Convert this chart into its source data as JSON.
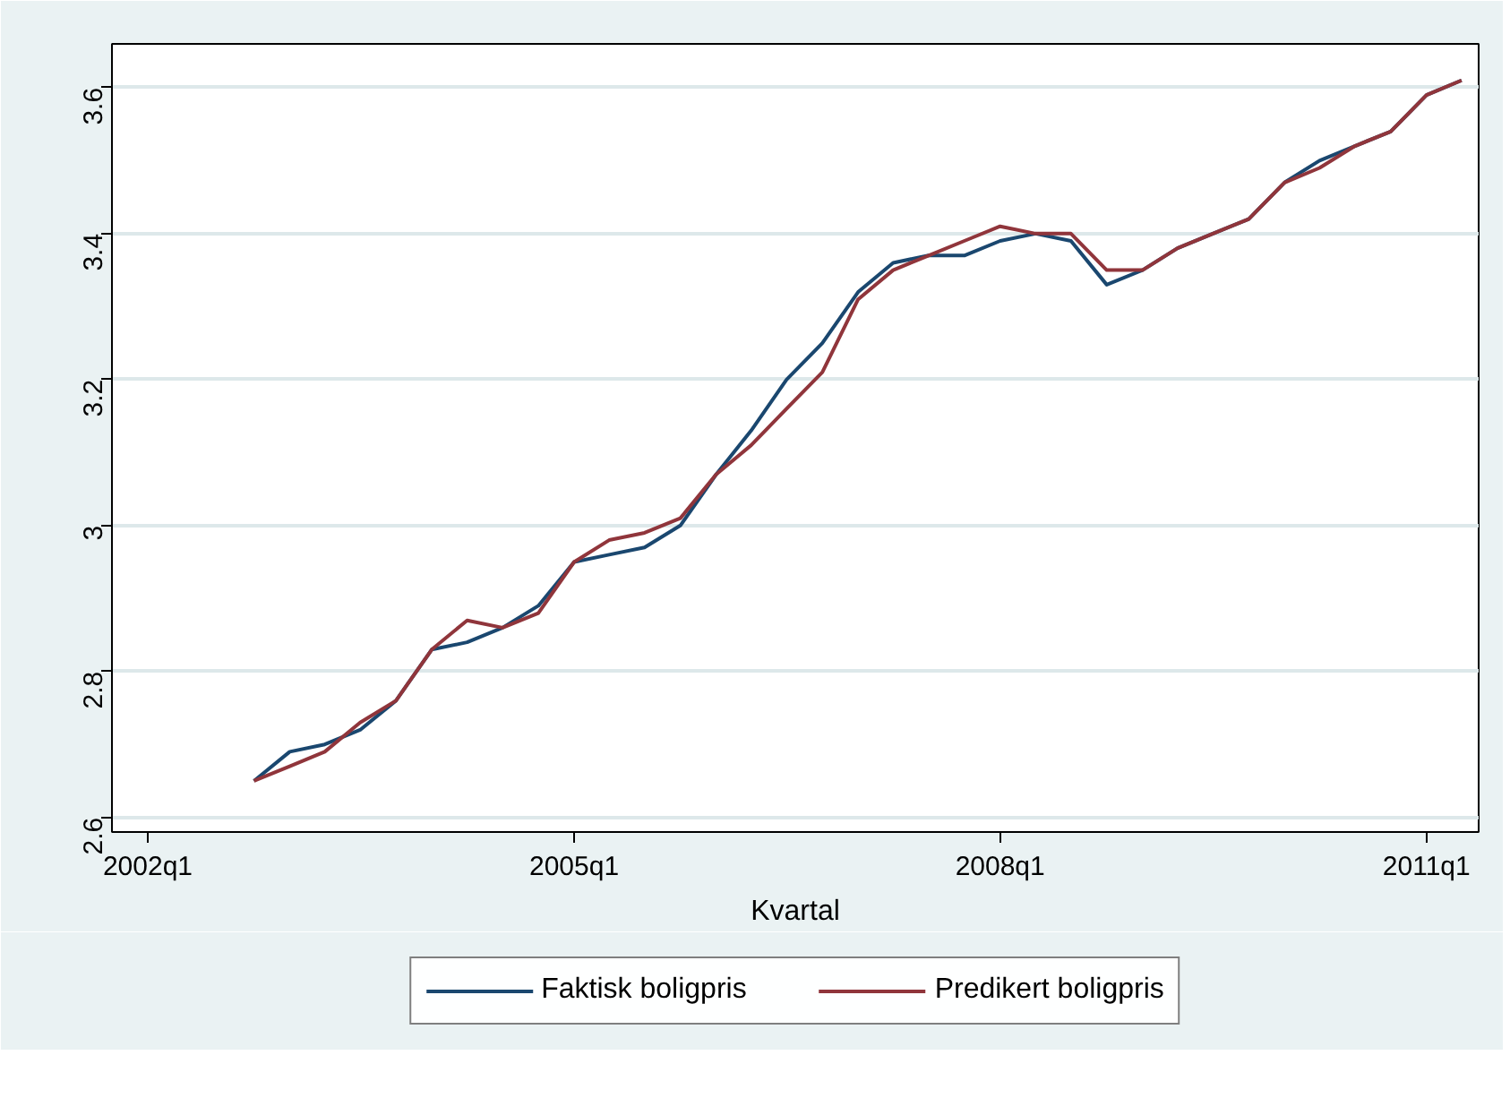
{
  "chart_data": {
    "type": "line",
    "xlabel": "Kvartal",
    "x": [
      "2002-10",
      "2003-01",
      "2003-04",
      "2003-07",
      "2003-10",
      "2004-01",
      "2004-04",
      "2004-07",
      "2004-10",
      "2005-01",
      "2005-04",
      "2005-07",
      "2005-10",
      "2006-01",
      "2006-04",
      "2006-07",
      "2006-10",
      "2007-01",
      "2007-04",
      "2007-07",
      "2007-10",
      "2008-01",
      "2008-04",
      "2008-07",
      "2008-10",
      "2009-01",
      "2009-04",
      "2009-07",
      "2009-10",
      "2010-01",
      "2010-04",
      "2010-07",
      "2010-10",
      "2011-01",
      "2011-04"
    ],
    "series": [
      {
        "name": "Faktisk boligpris",
        "color": "#1a476f",
        "values": [
          2.65,
          2.69,
          2.7,
          2.72,
          2.76,
          2.83,
          2.84,
          2.86,
          2.89,
          2.95,
          2.96,
          2.97,
          3.0,
          3.07,
          3.13,
          3.2,
          3.25,
          3.32,
          3.36,
          3.37,
          3.37,
          3.39,
          3.4,
          3.39,
          3.33,
          3.35,
          3.38,
          3.4,
          3.42,
          3.47,
          3.5,
          3.52,
          3.54,
          3.59,
          3.61
        ]
      },
      {
        "name": "Predikert boligpris",
        "color": "#90353b",
        "values": [
          2.65,
          2.67,
          2.69,
          2.73,
          2.76,
          2.83,
          2.87,
          2.86,
          2.88,
          2.95,
          2.98,
          2.99,
          3.01,
          3.07,
          3.11,
          3.16,
          3.21,
          3.31,
          3.35,
          3.37,
          3.39,
          3.41,
          3.4,
          3.4,
          3.35,
          3.35,
          3.38,
          3.4,
          3.42,
          3.47,
          3.49,
          3.52,
          3.54,
          3.59,
          3.61
        ]
      }
    ],
    "xlim": [
      "2001-10",
      "2011-05-15"
    ],
    "xticks": [
      {
        "value": "2002-01",
        "label": "2002q1"
      },
      {
        "value": "2005-01",
        "label": "2005q1"
      },
      {
        "value": "2008-01",
        "label": "2008q1"
      },
      {
        "value": "2011-01",
        "label": "2011q1"
      }
    ],
    "ylim": [
      2.58,
      3.66
    ],
    "yticks": [
      2.6,
      2.8,
      {
        "value": 3,
        "label": "3"
      },
      3.2,
      3.4,
      3.6
    ],
    "grid": "y",
    "legend": "bottom",
    "line_style": "solid",
    "marker": "none"
  }
}
